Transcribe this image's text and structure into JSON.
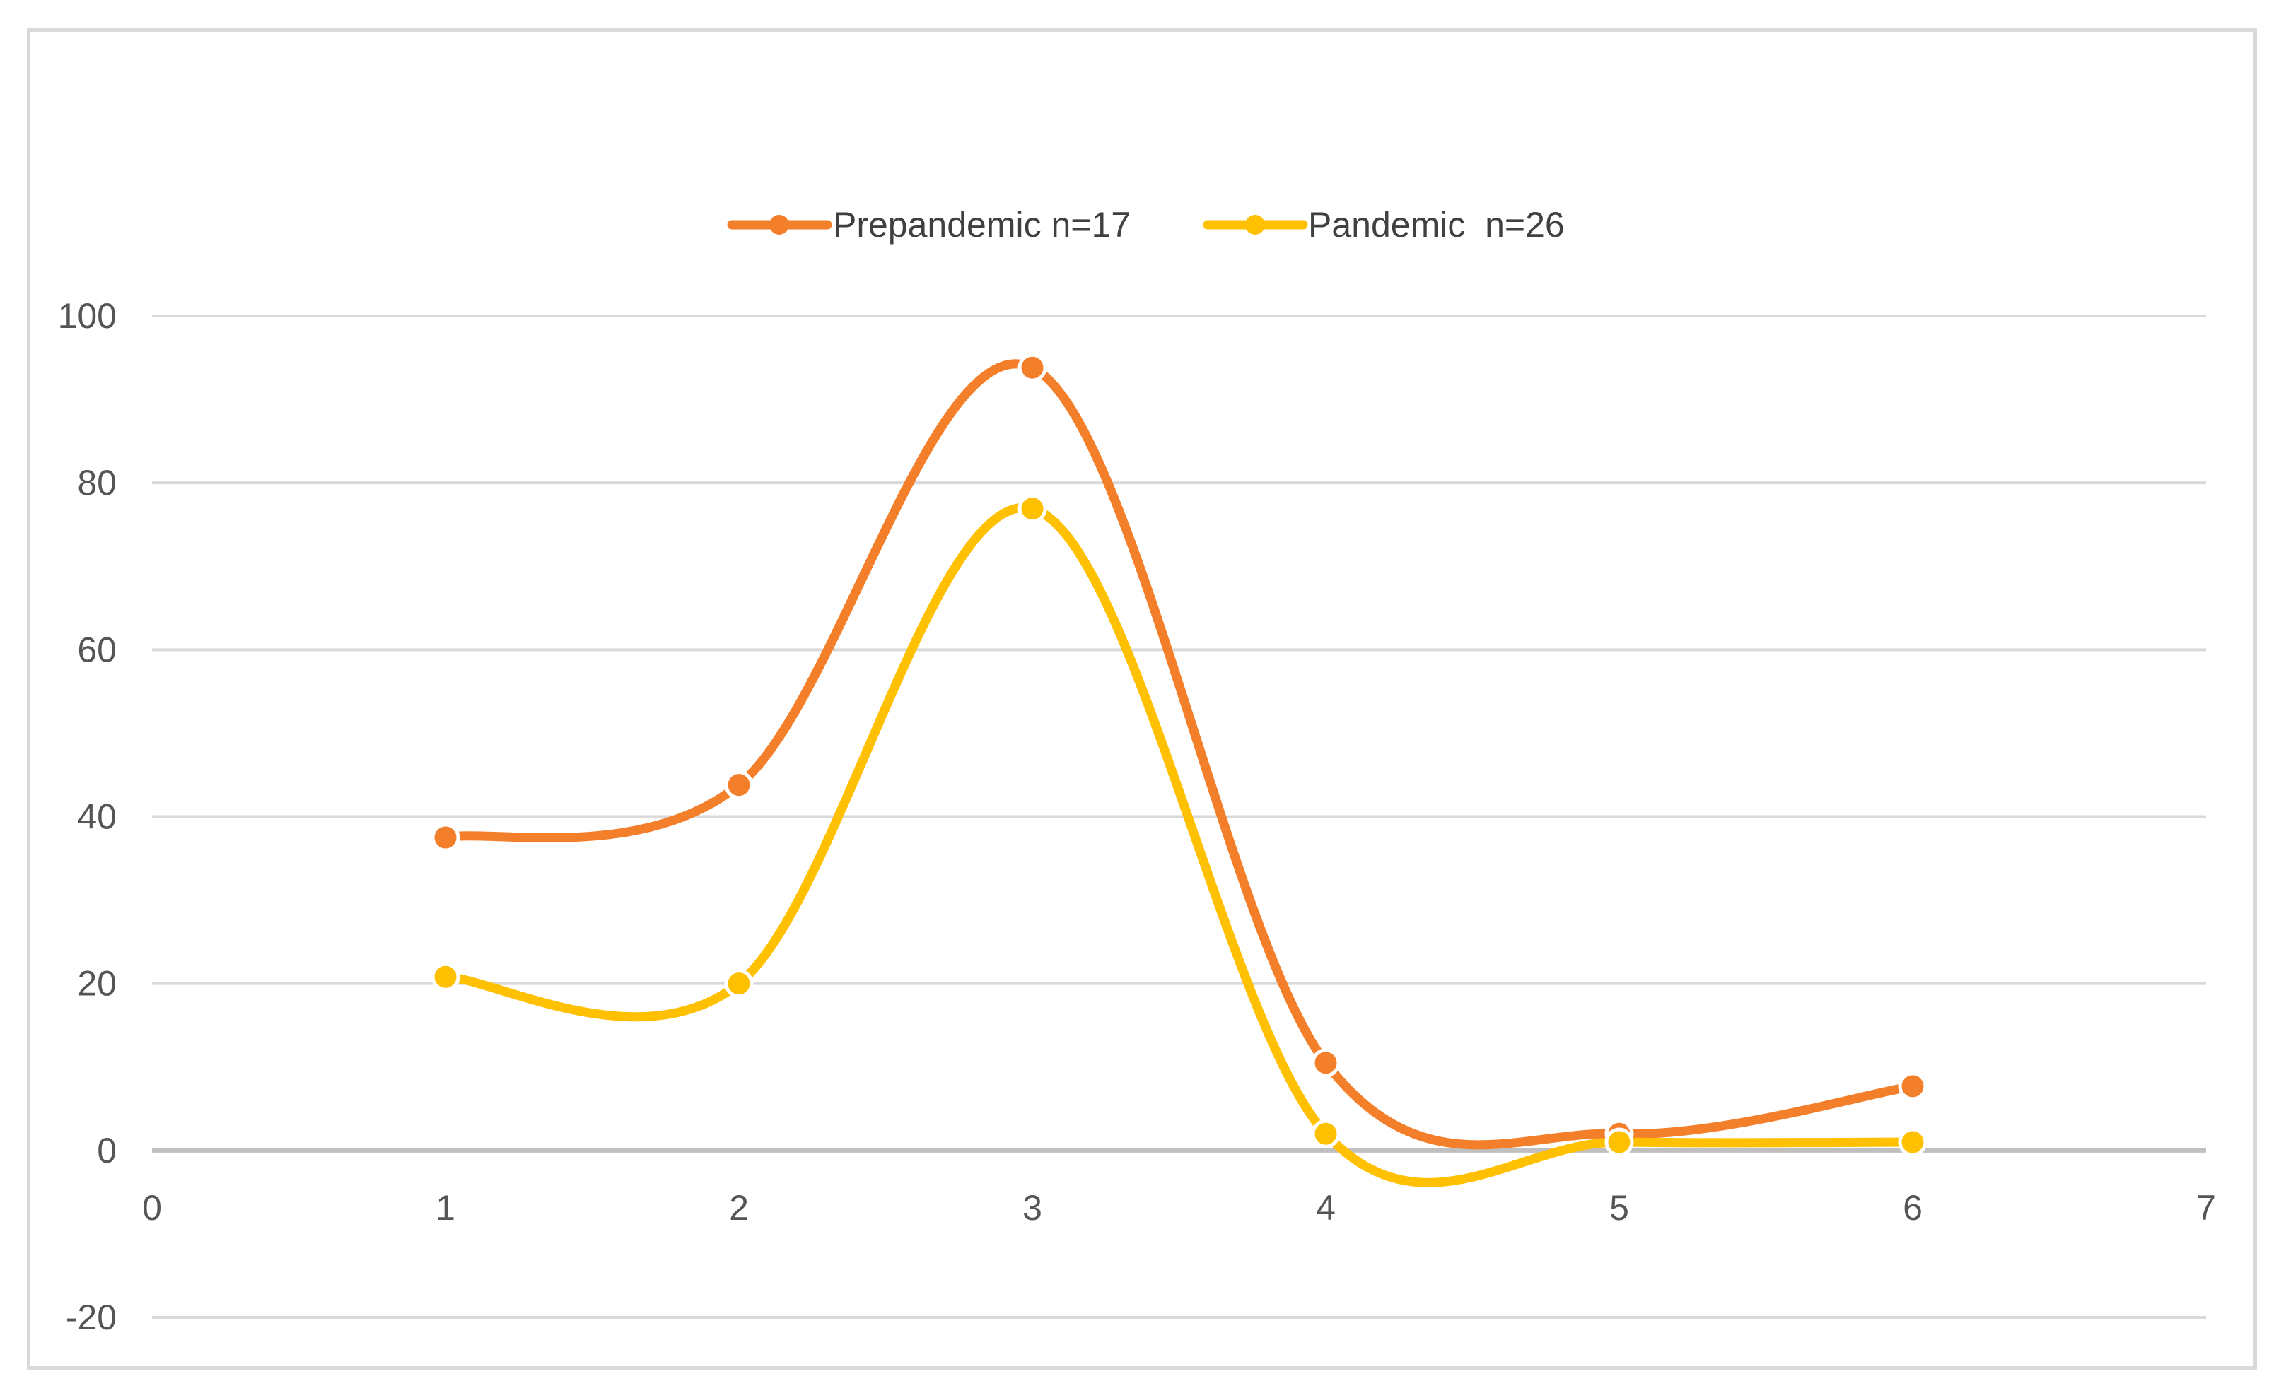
{
  "chart_data": {
    "type": "line",
    "title": "",
    "xlabel": "",
    "ylabel": "",
    "xlim": [
      0,
      7
    ],
    "ylim": [
      -20,
      100
    ],
    "x_ticks": [
      0,
      1,
      2,
      3,
      4,
      5,
      6,
      7
    ],
    "y_ticks": [
      100,
      80,
      60,
      40,
      20,
      0,
      -20
    ],
    "grid": "horizontal",
    "legend_position": "top-center",
    "smooth": true,
    "series": [
      {
        "name": "Prepandemic n=17",
        "color": "#f47f2a",
        "x": [
          1,
          2,
          3,
          4,
          5,
          6
        ],
        "values": [
          37.5,
          43.8,
          93.8,
          10.5,
          2,
          7.7
        ]
      },
      {
        "name": "Pandemic  n=26",
        "color": "#ffc000",
        "x": [
          1,
          2,
          3,
          4,
          5,
          6
        ],
        "values": [
          20.8,
          20,
          76.9,
          2,
          1,
          1
        ]
      }
    ]
  }
}
